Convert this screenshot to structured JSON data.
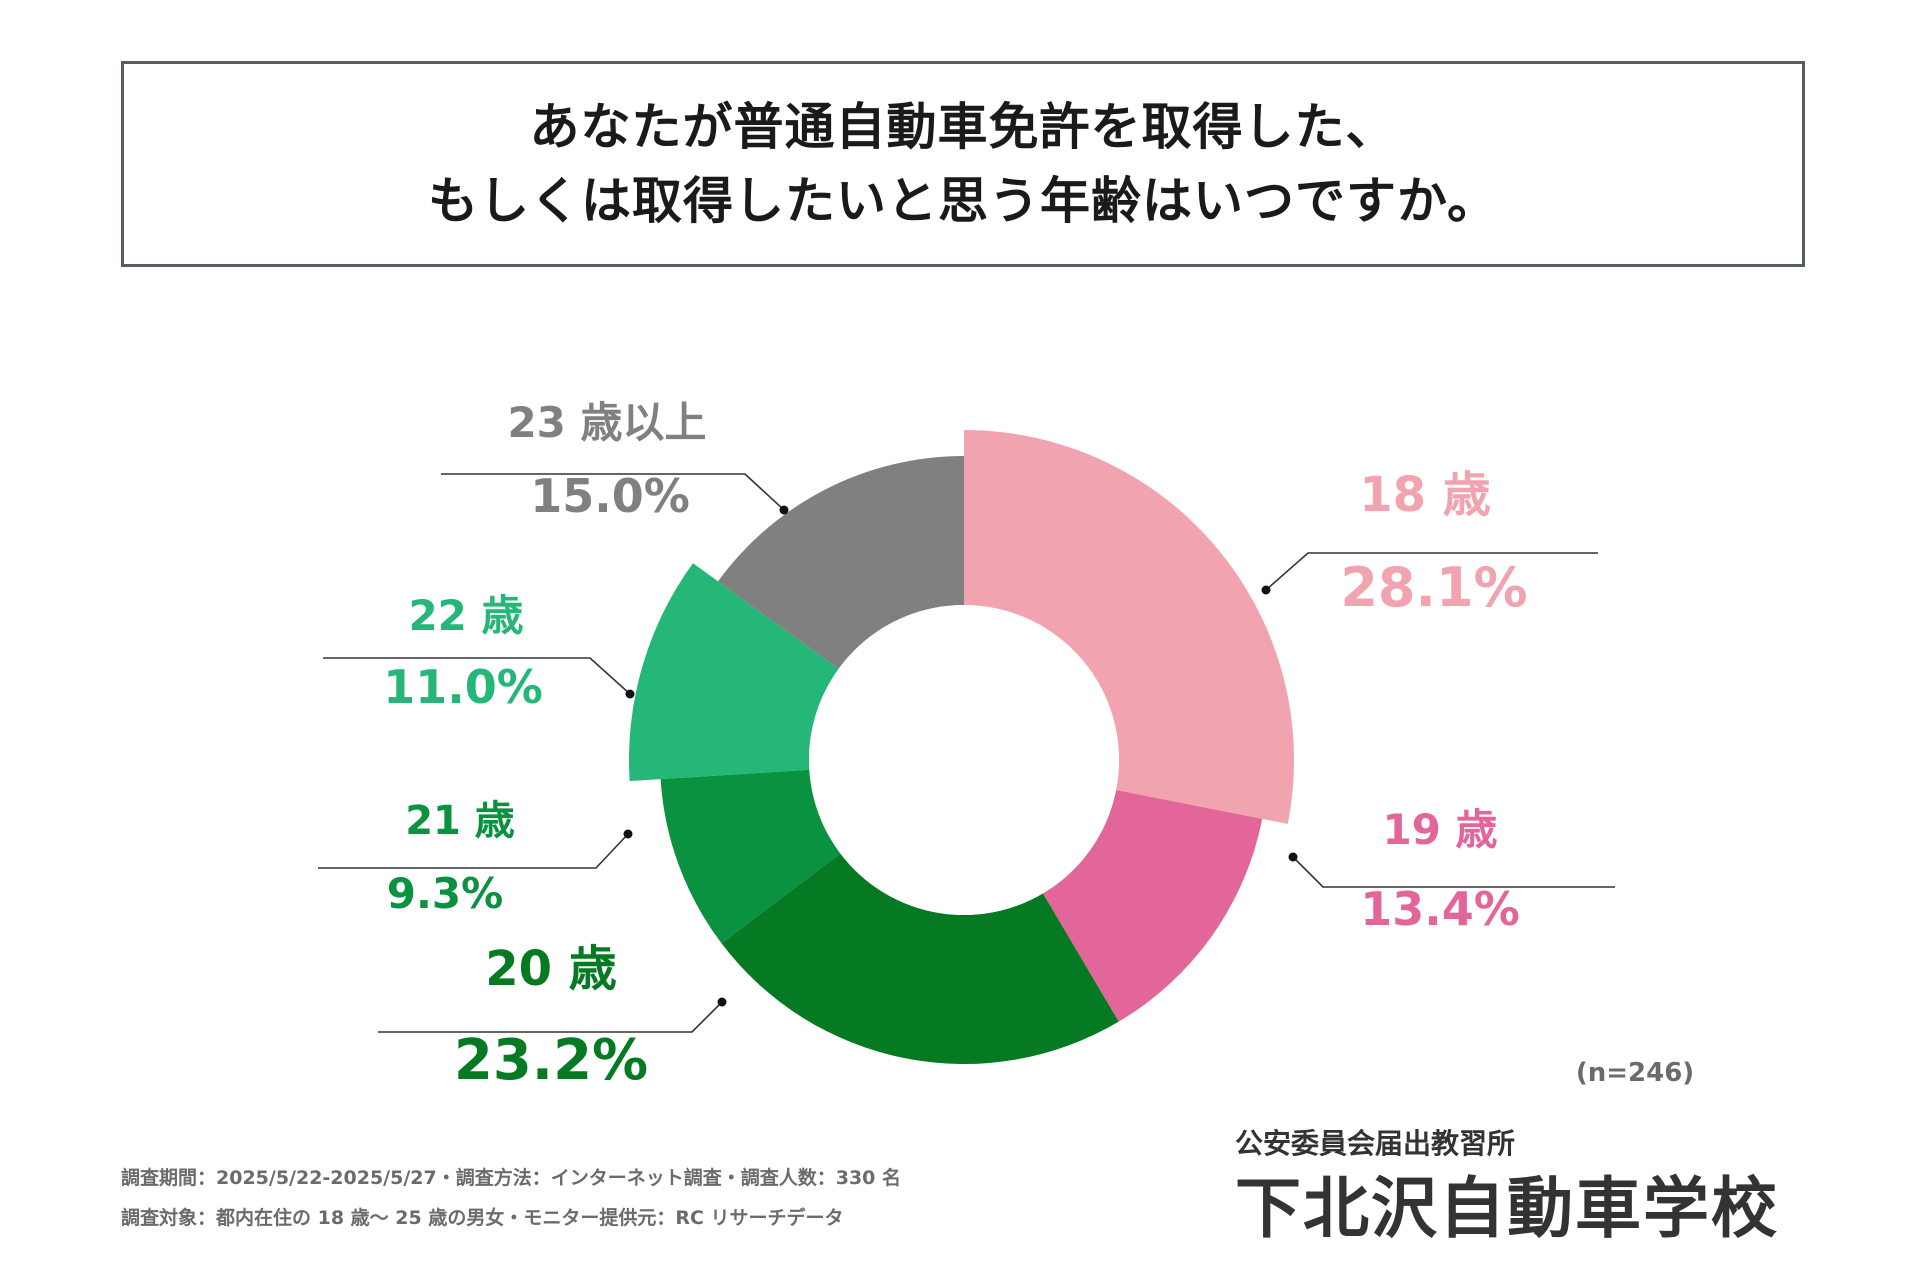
{
  "title": {
    "line1": "あなたが普通自動車免許を取得した、",
    "line2": "もしくは取得したいと思う年齢はいつですか。"
  },
  "sample_size": "(n=246)",
  "footnotes": {
    "line1": "調査期間：2025/5/22-2025/5/27・調査方法：インターネット調査・調査人数：330 名",
    "line2": "調査対象：都内在住の 18 歳～ 25 歳の男女・モニター提供元：RC リサーチデータ"
  },
  "brand": {
    "subtitle": "公安委員会届出教習所",
    "name": "下北沢自動車学校"
  },
  "chart_data": {
    "type": "pie",
    "variant": "donut",
    "title": "あなたが普通自動車免許を取得した、もしくは取得したいと思う年齢はいつですか。",
    "start": "top, clockwise",
    "categories": [
      "18 歳",
      "19 歳",
      "20 歳",
      "21 歳",
      "22 歳",
      "23 歳以上"
    ],
    "values": [
      28.1,
      13.4,
      23.2,
      9.3,
      11.0,
      15.0
    ],
    "value_labels": [
      "28.1%",
      "13.4%",
      "23.2%",
      "9.3%",
      "11.0%",
      "15.0%"
    ],
    "colors": [
      "#f2a3b0",
      "#e2669a",
      "#067a23",
      "#0a9240",
      "#25b777",
      "#808080"
    ],
    "highlighted": [
      "18 歳",
      "20 歳"
    ]
  }
}
